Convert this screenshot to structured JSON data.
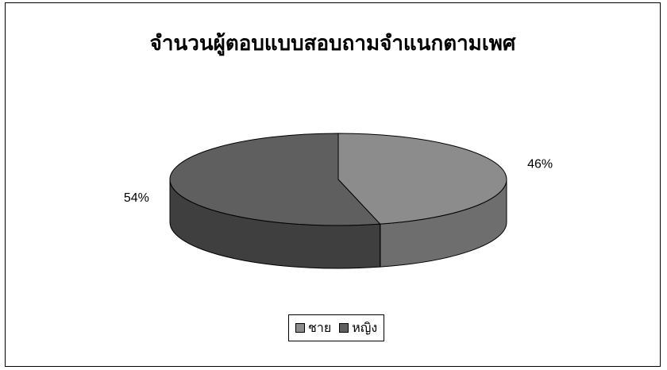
{
  "chart_data": {
    "type": "pie",
    "title": "จำนวนผู้ตอบแบบสอบถามจำแนกตามเพศ",
    "slices": [
      {
        "name": "ชาย",
        "value": 46,
        "label": "46%",
        "color": "#8c8c8c",
        "side_color": "#6e6e6e"
      },
      {
        "name": "หญิง",
        "value": 54,
        "label": "54%",
        "color": "#5f5f5f",
        "side_color": "#3f3f3f"
      }
    ],
    "legend_position": "bottom"
  }
}
